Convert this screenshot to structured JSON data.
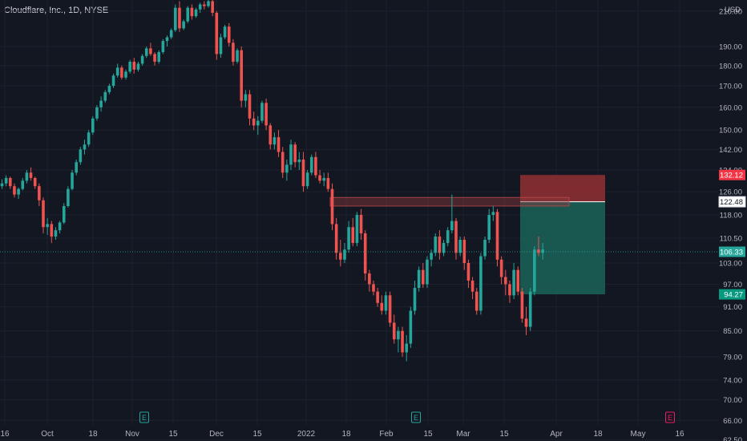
{
  "header": {
    "title": "Cloudflare, Inc., 1D, NYSE"
  },
  "axis": {
    "currency": "USD"
  },
  "colors": {
    "background": "#131722",
    "up": "#26a69a",
    "down": "#ef5350",
    "grid": "#1e222d",
    "price_line": "#26a69a",
    "target_zone": "#1b5e57",
    "stop_zone": "#8b2f31",
    "resistance_box": "#8b3a3d",
    "earnings_marker": "#26a69a",
    "future_marker": "#e91e63"
  },
  "chart_data": {
    "type": "candlestick",
    "title": "Cloudflare, Inc., 1D, NYSE",
    "y_ticks": [
      "210.00",
      "190.00",
      "180.00",
      "170.00",
      "160.00",
      "150.00",
      "142.00",
      "134.00",
      "126.00",
      "118.00",
      "110.50",
      "103.00",
      "97.00",
      "91.00",
      "85.00",
      "79.00",
      "74.00",
      "70.00",
      "66.00",
      "62.50"
    ],
    "x_ticks": [
      "16",
      "Oct",
      "18",
      "Nov",
      "15",
      "Dec",
      "15",
      "2022",
      "18",
      "Feb",
      "15",
      "Mar",
      "15",
      "Apr",
      "18",
      "May",
      "16"
    ],
    "price_labels": {
      "stop": "132.12",
      "entry": "122.48",
      "current": "106.33",
      "target": "94.27"
    },
    "levels": {
      "stop": 132.12,
      "entry": 122.48,
      "current": 106.33,
      "target": 94.27
    },
    "resistance_zone": {
      "low": 121.0,
      "high": 124.0
    },
    "earnings_markers": [
      {
        "label": "E"
      },
      {
        "label": "E"
      },
      {
        "label": "E"
      }
    ],
    "candles": [
      [
        128,
        130.5,
        127,
        129
      ],
      [
        129,
        132,
        128,
        131
      ],
      [
        131,
        131.5,
        127,
        128
      ],
      [
        128,
        129,
        124,
        125
      ],
      [
        125,
        127.5,
        123.5,
        127
      ],
      [
        127,
        131,
        126.5,
        130
      ],
      [
        130,
        134,
        129,
        133
      ],
      [
        133,
        135,
        130,
        131
      ],
      [
        131,
        131.5,
        127,
        128
      ],
      [
        128,
        129,
        121,
        123
      ],
      [
        123,
        124,
        112,
        114
      ],
      [
        114,
        117,
        111.5,
        115
      ],
      [
        115,
        116,
        109,
        111
      ],
      [
        111,
        114,
        110,
        113
      ],
      [
        113,
        116,
        112,
        115.5
      ],
      [
        115.5,
        122,
        115,
        121
      ],
      [
        121,
        128,
        120.5,
        127
      ],
      [
        127,
        134,
        126.5,
        133
      ],
      [
        133,
        138,
        132,
        137
      ],
      [
        137,
        143,
        136,
        142
      ],
      [
        142,
        146,
        140,
        144
      ],
      [
        144,
        150,
        143,
        149
      ],
      [
        149,
        156,
        148,
        155
      ],
      [
        155,
        161,
        154,
        160
      ],
      [
        160,
        165,
        158,
        163
      ],
      [
        163,
        168,
        162,
        167
      ],
      [
        167,
        171,
        166,
        170
      ],
      [
        170,
        176,
        169,
        175
      ],
      [
        175,
        181,
        174,
        179
      ],
      [
        179,
        180,
        173,
        174
      ],
      [
        174,
        178,
        173,
        177
      ],
      [
        177,
        183,
        176,
        182
      ],
      [
        182,
        184,
        176,
        178
      ],
      [
        178,
        182,
        177,
        181
      ],
      [
        181,
        186,
        180,
        185
      ],
      [
        185,
        190,
        184,
        189
      ],
      [
        189,
        192,
        185,
        186
      ],
      [
        186,
        187,
        180,
        182
      ],
      [
        182,
        188,
        181,
        187
      ],
      [
        187,
        194,
        186,
        193
      ],
      [
        193,
        196,
        190,
        195
      ],
      [
        195,
        200,
        194,
        199
      ],
      [
        199,
        214,
        198,
        212
      ],
      [
        212,
        216,
        198,
        200
      ],
      [
        200,
        205,
        199,
        204
      ],
      [
        204,
        213,
        203,
        212
      ],
      [
        212,
        214,
        205,
        207
      ],
      [
        207,
        212,
        206,
        211
      ],
      [
        211,
        215,
        209,
        214
      ],
      [
        214,
        216,
        211,
        213
      ],
      [
        213,
        218,
        212,
        216
      ],
      [
        216,
        217,
        207,
        209
      ],
      [
        209,
        210,
        183,
        186
      ],
      [
        186,
        197,
        184,
        195
      ],
      [
        195,
        202,
        194,
        201
      ],
      [
        201,
        203,
        190,
        192
      ],
      [
        192,
        194,
        180,
        182
      ],
      [
        182,
        189,
        181,
        188
      ],
      [
        188,
        190,
        160,
        163
      ],
      [
        163,
        168,
        160,
        166
      ],
      [
        166,
        168,
        152,
        155
      ],
      [
        155,
        158,
        150,
        152
      ],
      [
        152,
        156,
        148,
        154
      ],
      [
        154,
        163,
        153,
        162
      ],
      [
        162,
        164,
        150,
        152
      ],
      [
        152,
        153,
        142,
        144
      ],
      [
        144,
        149,
        142,
        147
      ],
      [
        147,
        150,
        139,
        141
      ],
      [
        141,
        143,
        131,
        133
      ],
      [
        133,
        138,
        130,
        136
      ],
      [
        136,
        146,
        134,
        144
      ],
      [
        144,
        145,
        135,
        137
      ],
      [
        137,
        141,
        134,
        138
      ],
      [
        138,
        141,
        126,
        128
      ],
      [
        128,
        134,
        127,
        133
      ],
      [
        133,
        140,
        132,
        139
      ],
      [
        139,
        141,
        131,
        132
      ],
      [
        132,
        134,
        129,
        130
      ],
      [
        130,
        133,
        128,
        131
      ],
      [
        131,
        133,
        126,
        127
      ],
      [
        127,
        129,
        113,
        115
      ],
      [
        115,
        117,
        104,
        106
      ],
      [
        106,
        110,
        102,
        104
      ],
      [
        104,
        109,
        103,
        107
      ],
      [
        107,
        116,
        106,
        114
      ],
      [
        114,
        117,
        108,
        109
      ],
      [
        109,
        119,
        108,
        118
      ],
      [
        118,
        120,
        110,
        112
      ],
      [
        112,
        113,
        98,
        100
      ],
      [
        100,
        101,
        95,
        97
      ],
      [
        97,
        98,
        94,
        95
      ],
      [
        95,
        96,
        91,
        92
      ],
      [
        92,
        94,
        89,
        90
      ],
      [
        90,
        95,
        89,
        94
      ],
      [
        94,
        95,
        86,
        87
      ],
      [
        87,
        89,
        82,
        83
      ],
      [
        83,
        86,
        80,
        85
      ],
      [
        85,
        86,
        79,
        80
      ],
      [
        80,
        84,
        78,
        82
      ],
      [
        82,
        91,
        81,
        90
      ],
      [
        90,
        98,
        89,
        96
      ],
      [
        96,
        102,
        95,
        101
      ],
      [
        101,
        103,
        96,
        97
      ],
      [
        97,
        105,
        96,
        104
      ],
      [
        104,
        107,
        102,
        106
      ],
      [
        106,
        112,
        105,
        111
      ],
      [
        111,
        113,
        104,
        106
      ],
      [
        106,
        110,
        105,
        109
      ],
      [
        109,
        114,
        108,
        113
      ],
      [
        113,
        125,
        112,
        116
      ],
      [
        116,
        117,
        104,
        106
      ],
      [
        106,
        111,
        105,
        110
      ],
      [
        110,
        111,
        101,
        103
      ],
      [
        103,
        104,
        96,
        98
      ],
      [
        98,
        99,
        93,
        95
      ],
      [
        95,
        96,
        89,
        90
      ],
      [
        90,
        106,
        89,
        105
      ],
      [
        105,
        111,
        104,
        110
      ],
      [
        110,
        120,
        109,
        118
      ],
      [
        118,
        121,
        116,
        119
      ],
      [
        119,
        120,
        102,
        104
      ],
      [
        104,
        105,
        97,
        99
      ],
      [
        99,
        101,
        94,
        97
      ],
      [
        97,
        98,
        92,
        94
      ],
      [
        94,
        103,
        93,
        101
      ],
      [
        101,
        102,
        94,
        95
      ],
      [
        95,
        96,
        87,
        88
      ],
      [
        88,
        91,
        84,
        86
      ],
      [
        86,
        96,
        85,
        95
      ],
      [
        95,
        108,
        94,
        107
      ],
      [
        107,
        111,
        105,
        106
      ],
      [
        106,
        109,
        104,
        107
      ]
    ]
  }
}
